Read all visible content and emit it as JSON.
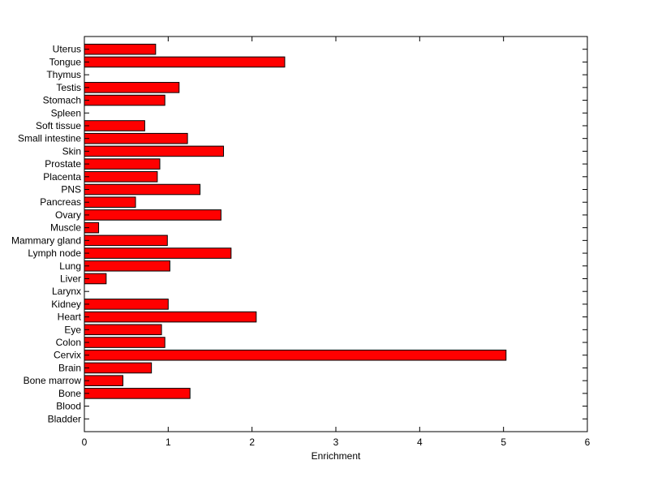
{
  "chart_data": {
    "type": "bar",
    "orientation": "horizontal",
    "title": "",
    "xlabel": "Enrichment",
    "ylabel": "",
    "xlim": [
      0,
      6
    ],
    "xticks": [
      "0",
      "1",
      "2",
      "3",
      "4",
      "5",
      "6"
    ],
    "grid": false,
    "bar_color": "#ff0000",
    "categories": [
      "Uterus",
      "Tongue",
      "Thymus",
      "Testis",
      "Stomach",
      "Spleen",
      "Soft tissue",
      "Small intestine",
      "Skin",
      "Prostate",
      "Placenta",
      "PNS",
      "Pancreas",
      "Ovary",
      "Muscle",
      "Mammary gland",
      "Lymph node",
      "Lung",
      "Liver",
      "Larynx",
      "Kidney",
      "Heart",
      "Eye",
      "Colon",
      "Cervix",
      "Brain",
      "Bone marrow",
      "Bone",
      "Blood",
      "Bladder"
    ],
    "values": [
      0.85,
      2.39,
      0,
      1.13,
      0.96,
      0,
      0.72,
      1.23,
      1.66,
      0.9,
      0.87,
      1.38,
      0.61,
      1.63,
      0.17,
      0.99,
      1.75,
      1.02,
      0.26,
      0,
      1.0,
      2.05,
      0.92,
      0.96,
      5.03,
      0.8,
      0.46,
      1.26,
      0,
      0
    ]
  }
}
